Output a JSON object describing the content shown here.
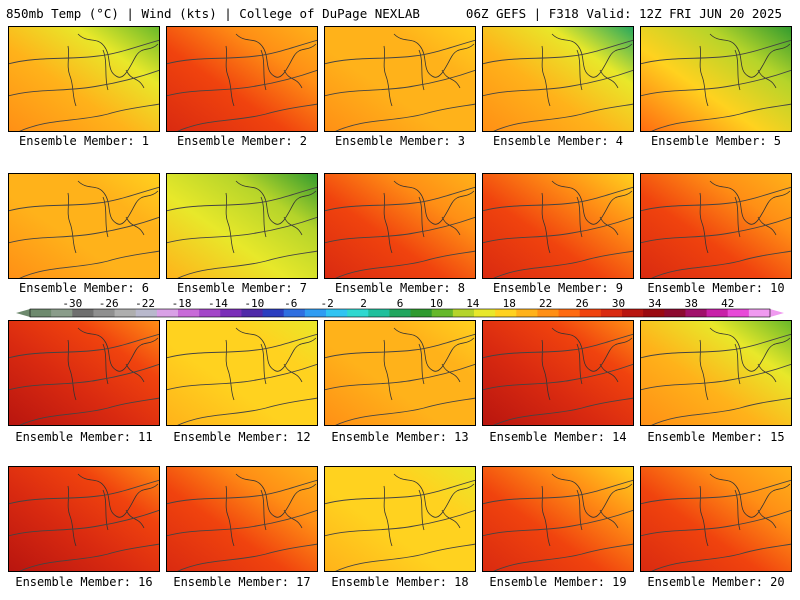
{
  "header": {
    "left": "850mb Temp (°C) | Wind (kts) | College of DuPage NEXLAB",
    "right": "06Z GEFS | F318 Valid: 12Z FRI JUN 20 2025"
  },
  "colorbar": {
    "labels": [
      "-30",
      "-26",
      "-22",
      "-18",
      "-14",
      "-10",
      "-6",
      "-2",
      "2",
      "6",
      "10",
      "14",
      "18",
      "22",
      "26",
      "30",
      "34",
      "38",
      "42"
    ],
    "colors": [
      "#6e8a6e",
      "#8a9c8a",
      "#6f6f6f",
      "#8f8f8f",
      "#aeaeae",
      "#b8b8cc",
      "#d9a0e6",
      "#c86ad8",
      "#a346c8",
      "#7a2eb8",
      "#4f2aa8",
      "#2b3ec0",
      "#2f6fe0",
      "#2f9cf2",
      "#30c4f2",
      "#2fd8d0",
      "#1fbf9c",
      "#22a65f",
      "#2f9a2f",
      "#66b82a",
      "#b5d42a",
      "#e8e82a",
      "#ffd21f",
      "#ffb21a",
      "#ff8f15",
      "#ff6a10",
      "#f0430e",
      "#d92a10",
      "#b8150f",
      "#9a0a10",
      "#8c0a2f",
      "#a0106a",
      "#c820a8",
      "#e84ad8",
      "#f09af0"
    ]
  },
  "members": [
    {
      "label": "Ensemble Member: 1",
      "palette": "cool_ne"
    },
    {
      "label": "Ensemble Member: 2",
      "palette": "hot_w"
    },
    {
      "label": "Ensemble Member: 3",
      "palette": "mild"
    },
    {
      "label": "Ensemble Member: 4",
      "palette": "cool_n"
    },
    {
      "label": "Ensemble Member: 5",
      "palette": "cool_ne_strong"
    },
    {
      "label": "Ensemble Member: 6",
      "palette": "mild"
    },
    {
      "label": "Ensemble Member: 7",
      "palette": "cool_n_strong"
    },
    {
      "label": "Ensemble Member: 8",
      "palette": "hot_w"
    },
    {
      "label": "Ensemble Member: 9",
      "palette": "hot_sw"
    },
    {
      "label": "Ensemble Member: 10",
      "palette": "hot_w"
    },
    {
      "label": "Ensemble Member: 11",
      "palette": "hot_nw"
    },
    {
      "label": "Ensemble Member: 12",
      "palette": "mild_yellow"
    },
    {
      "label": "Ensemble Member: 13",
      "palette": "mild"
    },
    {
      "label": "Ensemble Member: 14",
      "palette": "hot_nw"
    },
    {
      "label": "Ensemble Member: 15",
      "palette": "cool_ne"
    },
    {
      "label": "Ensemble Member: 16",
      "palette": "hot_nw"
    },
    {
      "label": "Ensemble Member: 17",
      "palette": "hot_w"
    },
    {
      "label": "Ensemble Member: 18",
      "palette": "mild_yellow"
    },
    {
      "label": "Ensemble Member: 19",
      "palette": "hot_sw"
    },
    {
      "label": "Ensemble Member: 20",
      "palette": "hot_w"
    }
  ]
}
